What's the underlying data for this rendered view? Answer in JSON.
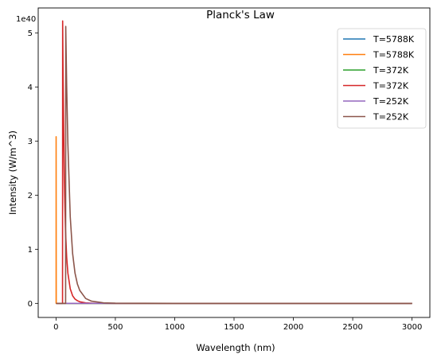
{
  "chart_data": {
    "type": "line",
    "title": "Planck's Law",
    "xlabel": "Wavelength (nm)",
    "ylabel": "Intensity (W/m^3)",
    "y_offset_label": "1e40",
    "xlim": [
      -150,
      3150
    ],
    "ylim": [
      -0.26,
      5.46
    ],
    "x_ticks": [
      0,
      500,
      1000,
      1500,
      2000,
      2500,
      3000
    ],
    "x_tick_labels": [
      "0",
      "500",
      "1000",
      "1500",
      "2000",
      "2500",
      "3000"
    ],
    "y_ticks": [
      0,
      1,
      2,
      3,
      4,
      5
    ],
    "y_tick_labels": [
      "0",
      "1",
      "2",
      "3",
      "4",
      "5"
    ],
    "grid": false,
    "legend_position": "top-right",
    "series": [
      {
        "name": "T=5788K",
        "color": "#1f77b4",
        "x": [
          1,
          3000
        ],
        "y": [
          0,
          0
        ]
      },
      {
        "name": "T=5788K",
        "color": "#ff7f0e",
        "x": [
          1,
          1,
          2,
          3000
        ],
        "y": [
          0,
          3.08,
          0,
          0
        ]
      },
      {
        "name": "T=372K",
        "color": "#2ca02c",
        "x": [
          1,
          3000
        ],
        "y": [
          0,
          0
        ]
      },
      {
        "name": "T=372K",
        "color": "#d62728",
        "x": [
          1,
          55,
          56,
          60,
          70,
          80,
          90,
          100,
          120,
          140,
          160,
          180,
          200,
          250,
          300,
          400,
          500,
          1000,
          2000,
          3000
        ],
        "y": [
          0,
          0,
          5.22,
          4.1,
          2.25,
          1.35,
          0.85,
          0.56,
          0.27,
          0.14,
          0.08,
          0.05,
          0.03,
          0.01,
          0.004,
          0.001,
          0.0,
          0.0,
          0.0,
          0.0
        ]
      },
      {
        "name": "T=252K",
        "color": "#9467bd",
        "x": [
          1,
          3000
        ],
        "y": [
          0,
          0
        ]
      },
      {
        "name": "T=252K",
        "color": "#8c564b",
        "x": [
          1,
          81,
          82,
          90,
          100,
          120,
          140,
          160,
          180,
          200,
          250,
          300,
          400,
          500,
          1000,
          2000,
          3000
        ],
        "y": [
          0,
          0,
          5.12,
          4.0,
          2.95,
          1.6,
          0.92,
          0.56,
          0.36,
          0.24,
          0.09,
          0.04,
          0.01,
          0.003,
          0.0,
          0.0,
          0.0
        ]
      }
    ]
  }
}
